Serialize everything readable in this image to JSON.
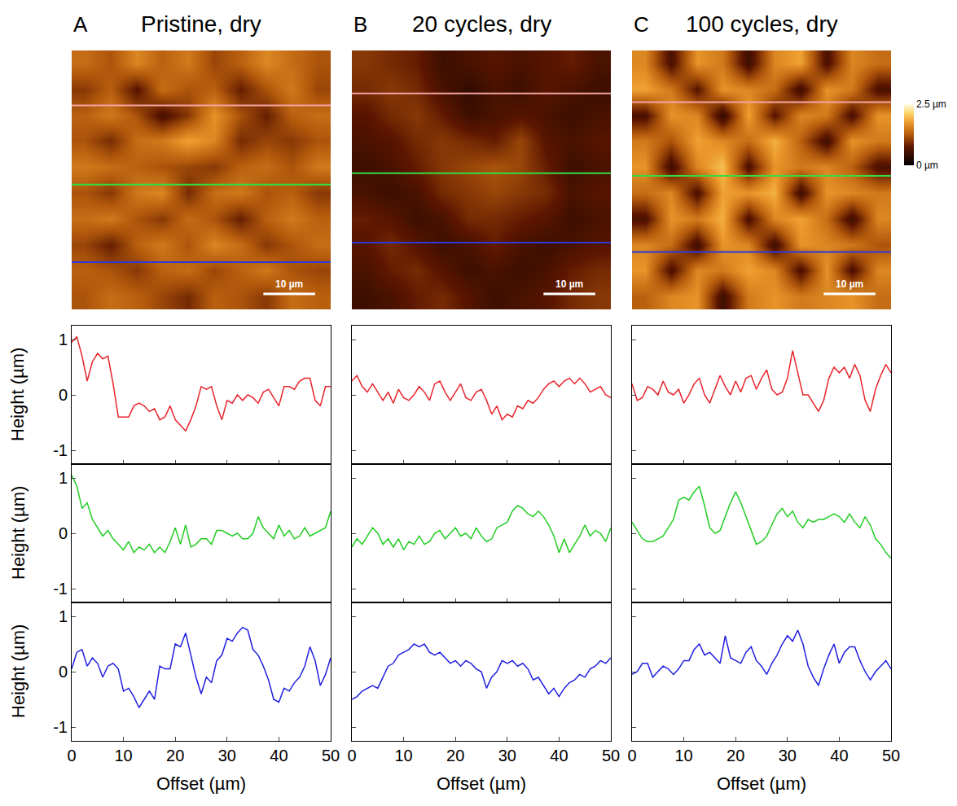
{
  "chart_data": [
    {
      "type": "heatmap",
      "title": "Pristine, dry",
      "label": "A",
      "x": [
        2.5,
        7.5,
        12.5,
        17.5,
        22.5,
        27.5,
        32.5,
        37.5,
        42.5,
        47.5
      ],
      "y": [
        2.5,
        7.5,
        12.5,
        17.5,
        22.5,
        27.5,
        32.5,
        37.5,
        42.5,
        47.5
      ],
      "z": [
        [
          1.4,
          1.2,
          1.6,
          1.3,
          1.5,
          1.1,
          1.3,
          1.6,
          1.4,
          1.2
        ],
        [
          1.0,
          1.3,
          0.7,
          1.4,
          1.2,
          1.3,
          0.8,
          1.2,
          1.5,
          1.1
        ],
        [
          1.3,
          1.5,
          1.2,
          0.6,
          1.0,
          1.7,
          1.2,
          0.8,
          1.3,
          1.4
        ],
        [
          1.2,
          0.9,
          1.4,
          1.5,
          1.8,
          1.6,
          0.9,
          1.1,
          1.0,
          1.2
        ],
        [
          1.5,
          1.4,
          1.3,
          1.2,
          1.1,
          1.0,
          1.3,
          1.4,
          1.2,
          1.5
        ],
        [
          1.2,
          1.0,
          1.5,
          1.6,
          0.9,
          1.4,
          1.5,
          1.2,
          1.3,
          1.0
        ],
        [
          1.4,
          1.5,
          1.2,
          1.0,
          1.4,
          1.2,
          0.8,
          1.3,
          1.5,
          1.3
        ],
        [
          1.1,
          0.8,
          1.3,
          1.5,
          1.2,
          1.6,
          1.4,
          1.0,
          1.2,
          1.4
        ],
        [
          1.3,
          1.2,
          1.0,
          1.3,
          1.4,
          1.1,
          1.3,
          1.5,
          1.2,
          1.1
        ],
        [
          1.2,
          1.4,
          1.3,
          1.1,
          0.9,
          1.3,
          1.2,
          1.0,
          1.4,
          1.3
        ]
      ],
      "xlim": [
        0,
        50
      ],
      "ylim": [
        50,
        0
      ],
      "zlim": [
        0,
        2.5
      ],
      "tick_labels": false,
      "scale_bar": {
        "length": 10,
        "label": "10 µm"
      },
      "profiles": [
        {
          "y": 10.6,
          "color": "#f4a3a3"
        },
        {
          "y": 25.9,
          "color": "#33dd44"
        },
        {
          "y": 40.9,
          "color": "#2a3ad8"
        }
      ]
    },
    {
      "type": "heatmap",
      "title": "20 cycles, dry",
      "label": "B",
      "x": [
        2.5,
        7.5,
        12.5,
        17.5,
        22.5,
        27.5,
        32.5,
        37.5,
        42.5,
        47.5
      ],
      "y": [
        2.5,
        7.5,
        12.5,
        17.5,
        22.5,
        27.5,
        32.5,
        37.5,
        42.5,
        47.5
      ],
      "z": [
        [
          1.0,
          0.9,
          0.8,
          0.5,
          0.6,
          0.7,
          0.6,
          0.7,
          0.8,
          0.6
        ],
        [
          0.9,
          1.0,
          0.9,
          0.6,
          0.4,
          0.6,
          0.5,
          0.7,
          0.6,
          0.5
        ],
        [
          0.7,
          0.9,
          1.0,
          0.8,
          0.5,
          0.6,
          0.7,
          0.6,
          0.5,
          0.6
        ],
        [
          0.6,
          0.7,
          0.9,
          1.0,
          0.9,
          0.8,
          1.1,
          0.7,
          0.6,
          0.7
        ],
        [
          0.5,
          0.6,
          0.8,
          1.0,
          1.1,
          1.2,
          1.1,
          0.8,
          0.5,
          0.6
        ],
        [
          0.6,
          0.5,
          0.6,
          0.9,
          1.0,
          1.1,
          1.0,
          0.9,
          0.6,
          0.7
        ],
        [
          0.8,
          0.7,
          0.5,
          0.6,
          0.9,
          0.9,
          0.8,
          0.7,
          0.5,
          0.6
        ],
        [
          0.7,
          0.9,
          0.7,
          0.5,
          0.6,
          0.8,
          0.6,
          0.5,
          0.6,
          0.7
        ],
        [
          0.6,
          0.8,
          0.9,
          0.7,
          0.5,
          0.6,
          0.5,
          0.6,
          0.8,
          0.9
        ],
        [
          0.5,
          0.6,
          0.8,
          0.9,
          0.7,
          0.5,
          0.6,
          0.7,
          0.9,
          1.0
        ]
      ],
      "xlim": [
        0,
        50
      ],
      "ylim": [
        50,
        0
      ],
      "zlim": [
        0,
        2.5
      ],
      "tick_labels": false,
      "scale_bar": {
        "length": 10,
        "label": "10 µm"
      },
      "profiles": [
        {
          "y": 8.3,
          "color": "#f4a3a3"
        },
        {
          "y": 23.7,
          "color": "#33dd44"
        },
        {
          "y": 37.1,
          "color": "#2a3ad8"
        }
      ]
    },
    {
      "type": "heatmap",
      "title": "100 cycles, dry",
      "label": "C",
      "x": [
        2.5,
        7.5,
        12.5,
        17.5,
        22.5,
        27.5,
        32.5,
        37.5,
        42.5,
        47.5
      ],
      "y": [
        2.5,
        7.5,
        12.5,
        17.5,
        22.5,
        27.5,
        32.5,
        37.5,
        42.5,
        47.5
      ],
      "z": [
        [
          1.6,
          0.6,
          1.7,
          1.5,
          0.5,
          1.6,
          1.8,
          0.6,
          1.6,
          1.4
        ],
        [
          1.8,
          1.5,
          0.7,
          1.7,
          1.6,
          1.4,
          0.5,
          1.7,
          1.5,
          0.6
        ],
        [
          0.6,
          1.7,
          1.6,
          0.4,
          1.8,
          0.7,
          1.6,
          1.5,
          0.6,
          1.7
        ],
        [
          1.5,
          1.2,
          1.8,
          1.6,
          1.4,
          1.9,
          1.3,
          0.5,
          1.7,
          1.5
        ],
        [
          1.7,
          0.5,
          1.6,
          2.0,
          0.6,
          1.7,
          1.5,
          1.6,
          1.3,
          0.6
        ],
        [
          1.4,
          1.6,
          0.6,
          1.8,
          1.7,
          1.9,
          0.5,
          1.7,
          1.6,
          1.5
        ],
        [
          0.6,
          1.7,
          1.5,
          1.9,
          0.6,
          1.6,
          1.8,
          1.4,
          0.5,
          1.6
        ],
        [
          1.6,
          1.4,
          0.5,
          1.7,
          1.6,
          0.5,
          1.7,
          1.6,
          1.5,
          1.2
        ],
        [
          1.7,
          0.6,
          1.6,
          1.5,
          1.8,
          1.6,
          0.6,
          1.7,
          0.6,
          1.6
        ],
        [
          1.3,
          1.6,
          1.7,
          0.5,
          1.5,
          1.7,
          1.5,
          1.6,
          1.7,
          1.4
        ]
      ],
      "xlim": [
        0,
        50
      ],
      "ylim": [
        50,
        0
      ],
      "zlim": [
        0,
        2.5
      ],
      "tick_labels": false,
      "zticks": [
        {
          "value": 0,
          "label": "0 µm"
        },
        {
          "value": 2.5,
          "label": "2.5 µm"
        }
      ],
      "scale_bar": {
        "length": 10,
        "label": "10 µm"
      },
      "profiles": [
        {
          "y": 10.0,
          "color": "#f4a3a3"
        },
        {
          "y": 24.2,
          "color": "#33dd44"
        },
        {
          "y": 38.9,
          "color": "#2a3ad8"
        }
      ]
    },
    {
      "type": "line",
      "x_label": "Offset (µm)",
      "y_label": "Height (µm)",
      "x": [
        0,
        1,
        2,
        3,
        4,
        5,
        6,
        7,
        8,
        9,
        10,
        11,
        12,
        13,
        14,
        15,
        16,
        17,
        18,
        19,
        20,
        21,
        22,
        23,
        24,
        25,
        26,
        27,
        28,
        29,
        30,
        31,
        32,
        33,
        34,
        35,
        36,
        37,
        38,
        39,
        40,
        41,
        42,
        43,
        44,
        45,
        46,
        47,
        48,
        49,
        50
      ],
      "xlim": [
        0,
        50
      ],
      "xticks": [
        0,
        10,
        20,
        30,
        40,
        50
      ],
      "ylim": [
        -1.25,
        1.25
      ],
      "yticks": [
        -1,
        0,
        1
      ],
      "series": [
        {
          "color": "#e8232a",
          "values": [
            0.95,
            1.05,
            0.7,
            0.25,
            0.6,
            0.75,
            0.65,
            0.7,
            0.2,
            -0.4,
            -0.4,
            -0.4,
            -0.2,
            -0.15,
            -0.2,
            -0.3,
            -0.25,
            -0.45,
            -0.4,
            -0.2,
            -0.45,
            -0.55,
            -0.65,
            -0.45,
            -0.2,
            0.15,
            0.1,
            0.15,
            -0.2,
            -0.45,
            -0.1,
            -0.15,
            0,
            -0.1,
            0,
            -0.05,
            -0.15,
            0.05,
            0.1,
            -0.05,
            -0.2,
            0.15,
            0.15,
            0.1,
            0.25,
            0.3,
            0.3,
            -0.1,
            -0.2,
            0.15,
            0.15
          ]
        },
        {
          "color": "#22cc22",
          "values": [
            1.05,
            0.85,
            0.45,
            0.55,
            0.25,
            0.1,
            -0.05,
            0.05,
            -0.1,
            -0.2,
            -0.3,
            -0.15,
            -0.35,
            -0.25,
            -0.3,
            -0.2,
            -0.35,
            -0.25,
            -0.35,
            -0.15,
            0.1,
            -0.2,
            0.15,
            -0.25,
            -0.2,
            -0.1,
            -0.1,
            -0.2,
            0.05,
            0.05,
            0,
            -0.05,
            0,
            -0.1,
            -0.1,
            0,
            0.3,
            0.1,
            0,
            -0.1,
            0.15,
            -0.05,
            0.05,
            -0.1,
            -0.05,
            0.1,
            -0.05,
            0,
            0.05,
            0.1,
            0.4
          ]
        },
        {
          "color": "#1f1fe0",
          "values": [
            0.05,
            0.35,
            0.4,
            0.1,
            0.25,
            0.15,
            -0.1,
            0.1,
            0.15,
            0.05,
            -0.35,
            -0.3,
            -0.45,
            -0.65,
            -0.5,
            -0.35,
            -0.5,
            0.1,
            0.05,
            0.05,
            0.5,
            0.45,
            0.7,
            0.3,
            -0.1,
            -0.4,
            -0.1,
            -0.2,
            0.2,
            0.3,
            0.6,
            0.55,
            0.7,
            0.8,
            0.75,
            0.4,
            0.3,
            0.1,
            -0.15,
            -0.5,
            -0.55,
            -0.3,
            -0.35,
            -0.2,
            -0.1,
            0.1,
            0.45,
            0.2,
            -0.25,
            -0.05,
            0.25
          ]
        }
      ]
    },
    {
      "type": "line",
      "x_label": "Offset (µm)",
      "x": [
        0,
        1,
        2,
        3,
        4,
        5,
        6,
        7,
        8,
        9,
        10,
        11,
        12,
        13,
        14,
        15,
        16,
        17,
        18,
        19,
        20,
        21,
        22,
        23,
        24,
        25,
        26,
        27,
        28,
        29,
        30,
        31,
        32,
        33,
        34,
        35,
        36,
        37,
        38,
        39,
        40,
        41,
        42,
        43,
        44,
        45,
        46,
        47,
        48,
        49,
        50
      ],
      "xlim": [
        0,
        50
      ],
      "xticks": [
        0,
        10,
        20,
        30,
        40,
        50
      ],
      "ylim": [
        -1.25,
        1.25
      ],
      "yticks": [
        -1,
        0,
        1
      ],
      "series": [
        {
          "color": "#e8232a",
          "values": [
            0.25,
            0.35,
            0.15,
            0.05,
            0.2,
            0.05,
            -0.1,
            0.05,
            -0.15,
            0.1,
            -0.05,
            -0.1,
            0,
            0.15,
            0.05,
            -0.1,
            0.2,
            0.25,
            0.05,
            -0.1,
            0.05,
            0.2,
            -0.05,
            -0.1,
            0.05,
            0.1,
            -0.1,
            -0.35,
            -0.2,
            -0.45,
            -0.35,
            -0.4,
            -0.2,
            -0.25,
            -0.1,
            -0.15,
            -0.05,
            0.1,
            0.2,
            0.25,
            0.15,
            0.25,
            0.3,
            0.2,
            0.3,
            0.2,
            0.05,
            0.1,
            0.15,
            0,
            -0.05
          ]
        },
        {
          "color": "#22cc22",
          "values": [
            -0.25,
            -0.1,
            -0.2,
            -0.05,
            0.1,
            0,
            -0.2,
            -0.1,
            -0.25,
            -0.1,
            -0.3,
            -0.15,
            -0.2,
            -0.05,
            -0.2,
            -0.15,
            0,
            0.05,
            -0.1,
            0,
            0.1,
            -0.05,
            0,
            -0.1,
            0.1,
            -0.05,
            -0.15,
            -0.1,
            0.1,
            0.15,
            0.2,
            0.4,
            0.5,
            0.45,
            0.35,
            0.3,
            0.4,
            0.3,
            0.15,
            -0.05,
            -0.35,
            -0.1,
            -0.35,
            -0.2,
            -0.05,
            0.15,
            -0.05,
            0.05,
            0,
            -0.15,
            0.1
          ]
        },
        {
          "color": "#1f1fe0",
          "values": [
            -0.5,
            -0.45,
            -0.35,
            -0.3,
            -0.25,
            -0.3,
            -0.1,
            0.1,
            0.15,
            0.3,
            0.35,
            0.4,
            0.5,
            0.45,
            0.5,
            0.35,
            0.3,
            0.35,
            0.25,
            0.15,
            0.2,
            0.1,
            0.2,
            0.15,
            0.05,
            0,
            -0.3,
            -0.1,
            0,
            0.2,
            0.15,
            0.2,
            0.1,
            0.15,
            0.05,
            -0.15,
            -0.1,
            -0.25,
            -0.4,
            -0.3,
            -0.45,
            -0.3,
            -0.2,
            -0.15,
            -0.05,
            -0.1,
            0.05,
            0.1,
            0.2,
            0.15,
            0.25
          ]
        }
      ]
    },
    {
      "type": "line",
      "x_label": "Offset (µm)",
      "x": [
        0,
        1,
        2,
        3,
        4,
        5,
        6,
        7,
        8,
        9,
        10,
        11,
        12,
        13,
        14,
        15,
        16,
        17,
        18,
        19,
        20,
        21,
        22,
        23,
        24,
        25,
        26,
        27,
        28,
        29,
        30,
        31,
        32,
        33,
        34,
        35,
        36,
        37,
        38,
        39,
        40,
        41,
        42,
        43,
        44,
        45,
        46,
        47,
        48,
        49,
        50
      ],
      "xlim": [
        0,
        50
      ],
      "xticks": [
        0,
        10,
        20,
        30,
        40,
        50
      ],
      "ylim": [
        -1.25,
        1.25
      ],
      "yticks": [
        -1,
        0,
        1
      ],
      "series": [
        {
          "color": "#e8232a",
          "values": [
            0.2,
            -0.1,
            -0.05,
            0.15,
            0.1,
            0,
            0.25,
            0.05,
            0,
            0.1,
            -0.15,
            0,
            0.2,
            0.3,
            0,
            -0.15,
            0.1,
            0.35,
            0.15,
            0,
            0.25,
            0.05,
            0.3,
            0.35,
            0.1,
            0.3,
            0.45,
            0.1,
            0,
            0.05,
            0.3,
            0.8,
            0.4,
            0,
            0,
            -0.15,
            -0.3,
            -0.1,
            0.3,
            0.5,
            0.4,
            0.5,
            0.3,
            0.55,
            0.35,
            -0.1,
            -0.3,
            0.1,
            0.35,
            0.55,
            0.4
          ]
        },
        {
          "color": "#22cc22",
          "values": [
            0.2,
            0.05,
            -0.1,
            -0.15,
            -0.15,
            -0.1,
            -0.05,
            0.1,
            0.25,
            0.6,
            0.65,
            0.6,
            0.75,
            0.85,
            0.5,
            0.1,
            0,
            0.05,
            0.3,
            0.55,
            0.75,
            0.55,
            0.3,
            0.05,
            -0.2,
            -0.15,
            -0.05,
            0.15,
            0.35,
            0.45,
            0.3,
            0.4,
            0.2,
            0.1,
            0.25,
            0.2,
            0.25,
            0.25,
            0.3,
            0.35,
            0.3,
            0.2,
            0.35,
            0.2,
            0.1,
            0.3,
            0.15,
            -0.1,
            -0.2,
            -0.35,
            -0.45
          ]
        },
        {
          "color": "#1f1fe0",
          "values": [
            -0.05,
            0,
            0.15,
            0.15,
            -0.1,
            0,
            0.1,
            0.05,
            -0.05,
            0.05,
            0.2,
            0.2,
            0.4,
            0.5,
            0.3,
            0.35,
            0.25,
            0.15,
            0.65,
            0.25,
            0.2,
            0.15,
            0.35,
            0.45,
            0.2,
            0.1,
            -0.05,
            0.15,
            0.3,
            0.5,
            0.65,
            0.55,
            0.75,
            0.5,
            0.1,
            -0.1,
            -0.25,
            0.05,
            0.3,
            0.5,
            0.15,
            0.35,
            0.45,
            0.45,
            0.2,
            0,
            -0.15,
            0,
            0.1,
            0.2,
            0.05
          ]
        }
      ]
    }
  ]
}
